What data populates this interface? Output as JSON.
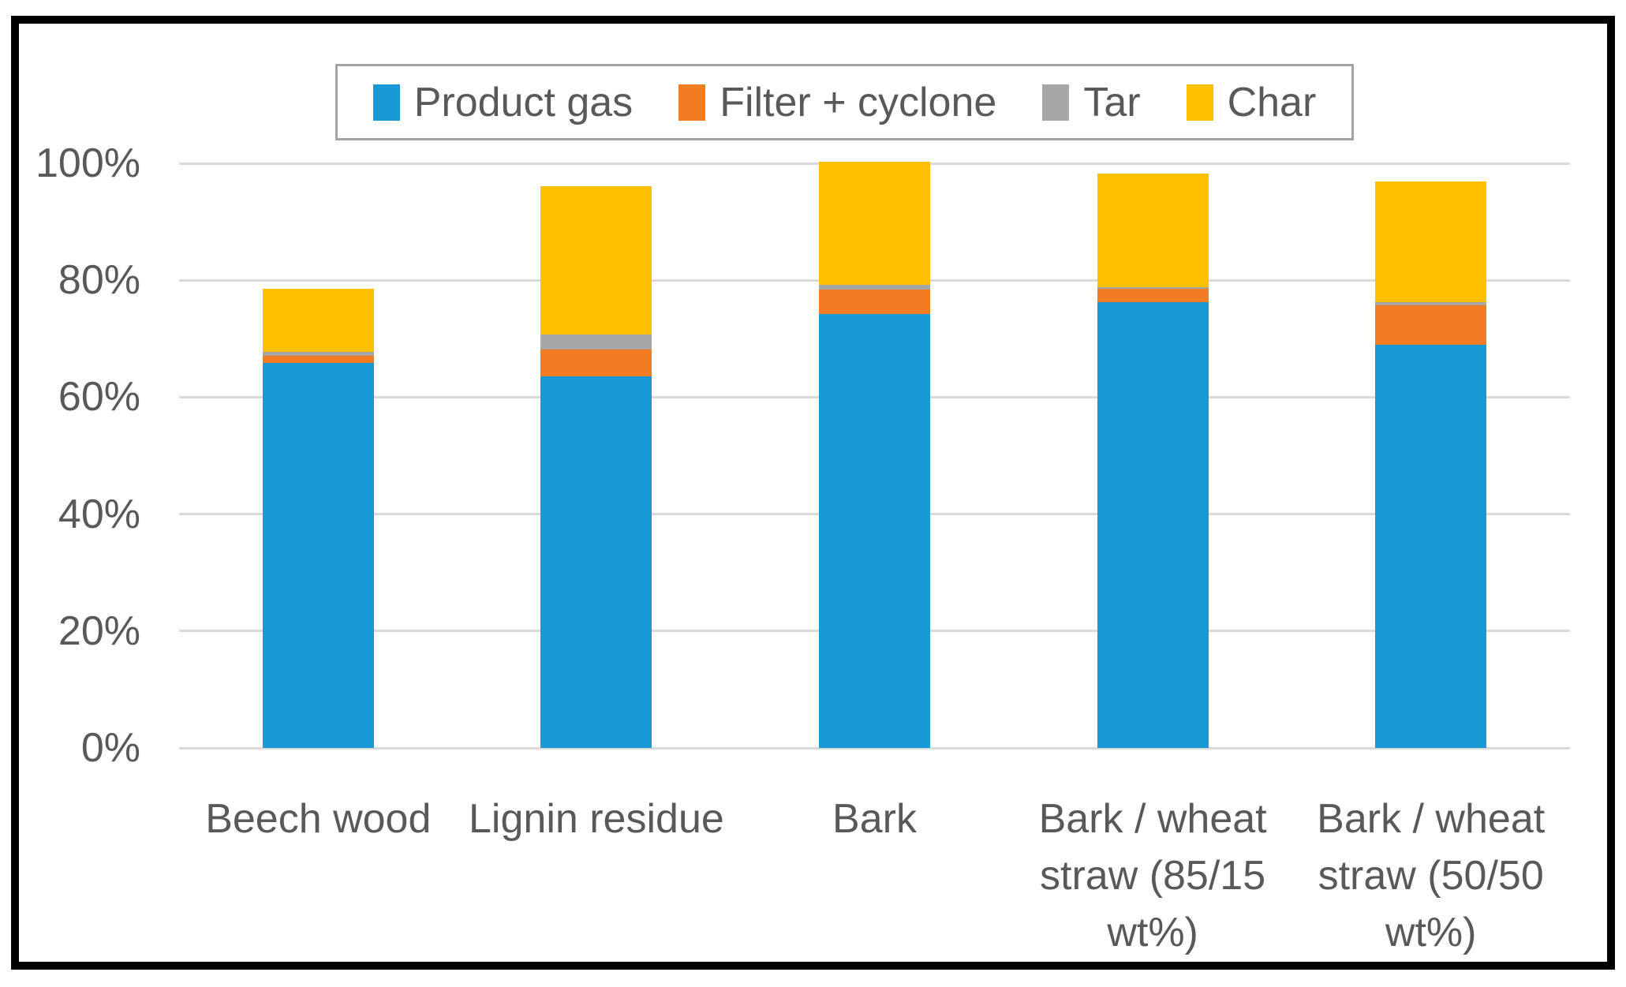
{
  "figure": {
    "border_color": "#000000",
    "background_color": "#ffffff"
  },
  "legend": {
    "position": "top",
    "border_color": "#A3A3A3",
    "items": [
      {
        "label": "Product gas",
        "color": "#1899D6"
      },
      {
        "label": "Filter + cyclone",
        "color": "#F17C22"
      },
      {
        "label": "Tar",
        "color": "#A6A6A6"
      },
      {
        "label": "Char",
        "color": "#FFC000"
      }
    ]
  },
  "axis": {
    "tick_color": "#595959",
    "gridline_color": "#D9D9D9",
    "label_color": "#595959"
  },
  "chart_data": {
    "type": "bar",
    "stacked": true,
    "title": "",
    "xlabel": "",
    "ylabel": "",
    "ylim": [
      0,
      100
    ],
    "grid": true,
    "legend_position": "top",
    "y_ticks": [
      "0%",
      "20%",
      "40%",
      "60%",
      "80%",
      "100%"
    ],
    "y_tick_values": [
      0,
      20,
      40,
      60,
      80,
      100
    ],
    "categories": [
      "Beech wood",
      "Lignin residue",
      "Bark",
      "Bark / wheat straw (85/15 wt%)",
      "Bark / wheat straw (50/50 wt%)"
    ],
    "category_label_lines": [
      "Beech wood",
      "Lignin residue",
      "Bark",
      "Bark / wheat\nstraw (85/15\nwt%)",
      "Bark / wheat\nstraw (50/50\nwt%)"
    ],
    "series": [
      {
        "name": "Product gas",
        "color": "#1899D6",
        "values": [
          65.8,
          63.6,
          74.2,
          76.3,
          68.9
        ]
      },
      {
        "name": "Filter + cyclone",
        "color": "#F17C22",
        "values": [
          1.3,
          4.5,
          4.2,
          2.2,
          6.8
        ]
      },
      {
        "name": "Tar",
        "color": "#A6A6A6",
        "values": [
          0.6,
          2.6,
          0.8,
          0.3,
          0.5
        ]
      },
      {
        "name": "Char",
        "color": "#FFC000",
        "values": [
          10.8,
          25.4,
          21.1,
          19.4,
          20.7
        ]
      }
    ],
    "stack_totals": [
      78.5,
      96.1,
      100.3,
      98.2,
      96.9
    ]
  }
}
